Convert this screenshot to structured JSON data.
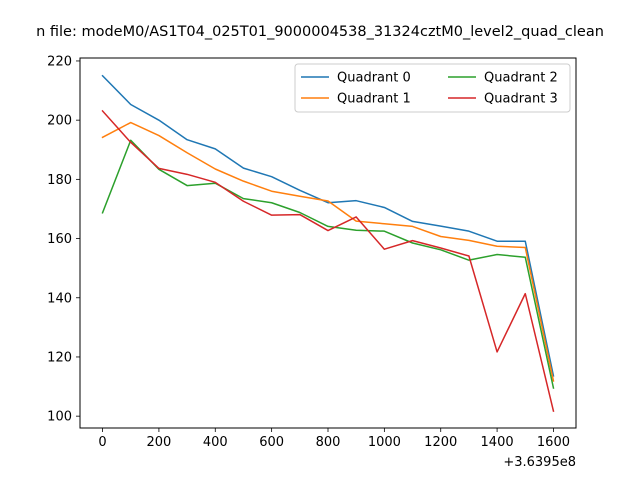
{
  "chart_data": {
    "type": "line",
    "title": "n file: modeM0/AS1T04_025T01_9000004538_31324cztM0_level2_quad_clean",
    "xlabel": "",
    "ylabel": "",
    "x_offset_label": "+3.6395e8",
    "x": [
      0,
      100,
      200,
      300,
      400,
      500,
      600,
      700,
      800,
      900,
      1000,
      1100,
      1200,
      1300,
      1400,
      1500,
      1600
    ],
    "xlim": [
      -80,
      1680
    ],
    "ylim": [
      96,
      221
    ],
    "xticks": [
      0,
      200,
      400,
      600,
      800,
      1000,
      1200,
      1400,
      1600
    ],
    "yticks": [
      100,
      120,
      140,
      160,
      180,
      200,
      220
    ],
    "grid": false,
    "legend_position": "top-right",
    "legend_columns": 2,
    "series": [
      {
        "name": "Quadrant 0",
        "color": "#1f77b4",
        "values": [
          215.0,
          205.3,
          200.0,
          193.4,
          190.3,
          183.8,
          180.9,
          176.3,
          172.1,
          172.8,
          170.5,
          165.8,
          164.2,
          162.5,
          159.1,
          159.1,
          113.6
        ]
      },
      {
        "name": "Quadrant 1",
        "color": "#ff7f0e",
        "values": [
          194.2,
          199.2,
          194.8,
          189.0,
          183.5,
          179.4,
          176.0,
          174.3,
          172.7,
          165.9,
          165.0,
          164.1,
          160.7,
          159.4,
          157.4,
          157.0,
          111.9
        ]
      },
      {
        "name": "Quadrant 2",
        "color": "#2ca02c",
        "values": [
          168.7,
          193.2,
          183.4,
          177.9,
          178.7,
          173.5,
          172.1,
          168.8,
          164.1,
          162.8,
          162.5,
          158.5,
          156.2,
          152.7,
          154.6,
          153.7,
          109.5
        ]
      },
      {
        "name": "Quadrant 3",
        "color": "#d62728",
        "values": [
          203.1,
          192.5,
          183.7,
          181.7,
          179.0,
          172.6,
          167.9,
          168.1,
          162.7,
          167.3,
          156.4,
          159.3,
          156.8,
          154.1,
          121.7,
          141.4,
          101.7
        ]
      }
    ]
  }
}
